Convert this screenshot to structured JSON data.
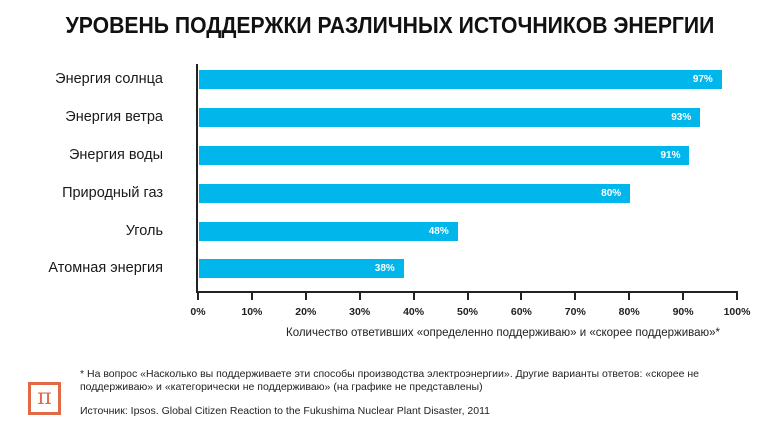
{
  "chart_data": {
    "type": "bar",
    "orientation": "horizontal",
    "title": "УРОВЕНЬ ПОДДЕРЖКИ РАЗЛИЧНЫХ ИСТОЧНИКОВ ЭНЕРГИИ",
    "categories": [
      "Энергия солнца",
      "Энергия ветра",
      "Энергия воды",
      "Природный газ",
      "Уголь",
      "Атомная энергия"
    ],
    "values": [
      97,
      93,
      91,
      80,
      48,
      38
    ],
    "value_labels": [
      "97%",
      "93%",
      "91%",
      "80%",
      "48%",
      "38%"
    ],
    "xlabel": "Количество ответивших «определенно поддерживаю» и «скорее поддерживаю»*",
    "ylabel": "",
    "xlim": [
      0,
      100
    ],
    "x_ticks": [
      "0%",
      "10%",
      "20%",
      "30%",
      "40%",
      "50%",
      "60%",
      "70%",
      "80%",
      "90%",
      "100%"
    ],
    "grid": false,
    "legend": null,
    "bar_color": "#00b6ea"
  },
  "footnote": "* На вопрос «Насколько вы поддерживаете эти способы производства электроэнергии». Другие варианты ответов: «скорее не поддерживаю» и «категорически не поддерживаю» (на графике не представлены)",
  "source": "Источник: Ipsos. Global Citizen Reaction to the Fukushima Nuclear Plant Disaster, 2011",
  "logo": {
    "glyph": "π",
    "icon": "pi-logo-icon",
    "color": "#e06a45"
  }
}
